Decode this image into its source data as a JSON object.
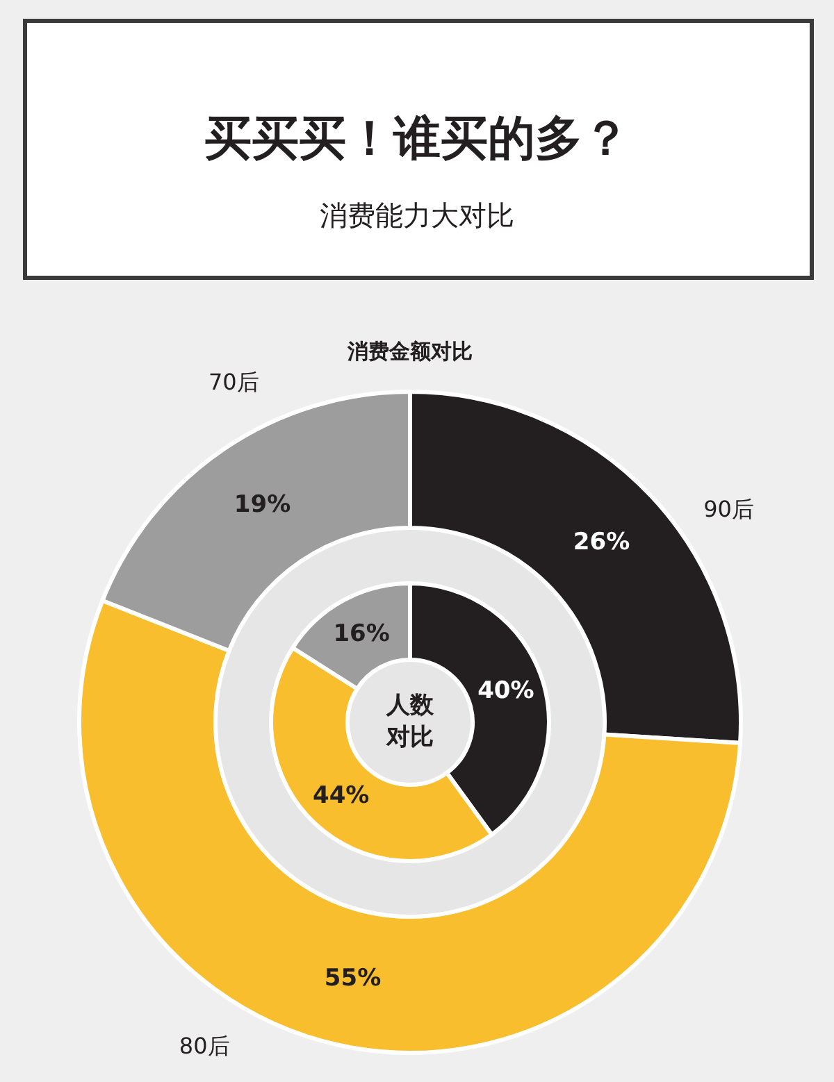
{
  "chart_data": [
    {
      "type": "other",
      "title": "买买买！谁买的多？",
      "subtitle": "消费能力大对比"
    },
    {
      "type": "donut",
      "title": "消费金额对比",
      "categories": [
        "90后",
        "80后",
        "70后"
      ],
      "values": [
        26,
        55,
        19
      ],
      "colors": [
        "#231f20",
        "#f8be2e",
        "#9d9d9d"
      ],
      "value_labels": [
        "26%",
        "55%",
        "19%"
      ],
      "legend": false
    },
    {
      "type": "donut",
      "title": "人数对比",
      "categories": [
        null,
        null,
        null
      ],
      "values": [
        40,
        44,
        16
      ],
      "colors": [
        "#231f20",
        "#f8be2e",
        "#9d9d9d"
      ],
      "value_labels": [
        "40%",
        "44%",
        "16%"
      ],
      "legend": false
    }
  ]
}
